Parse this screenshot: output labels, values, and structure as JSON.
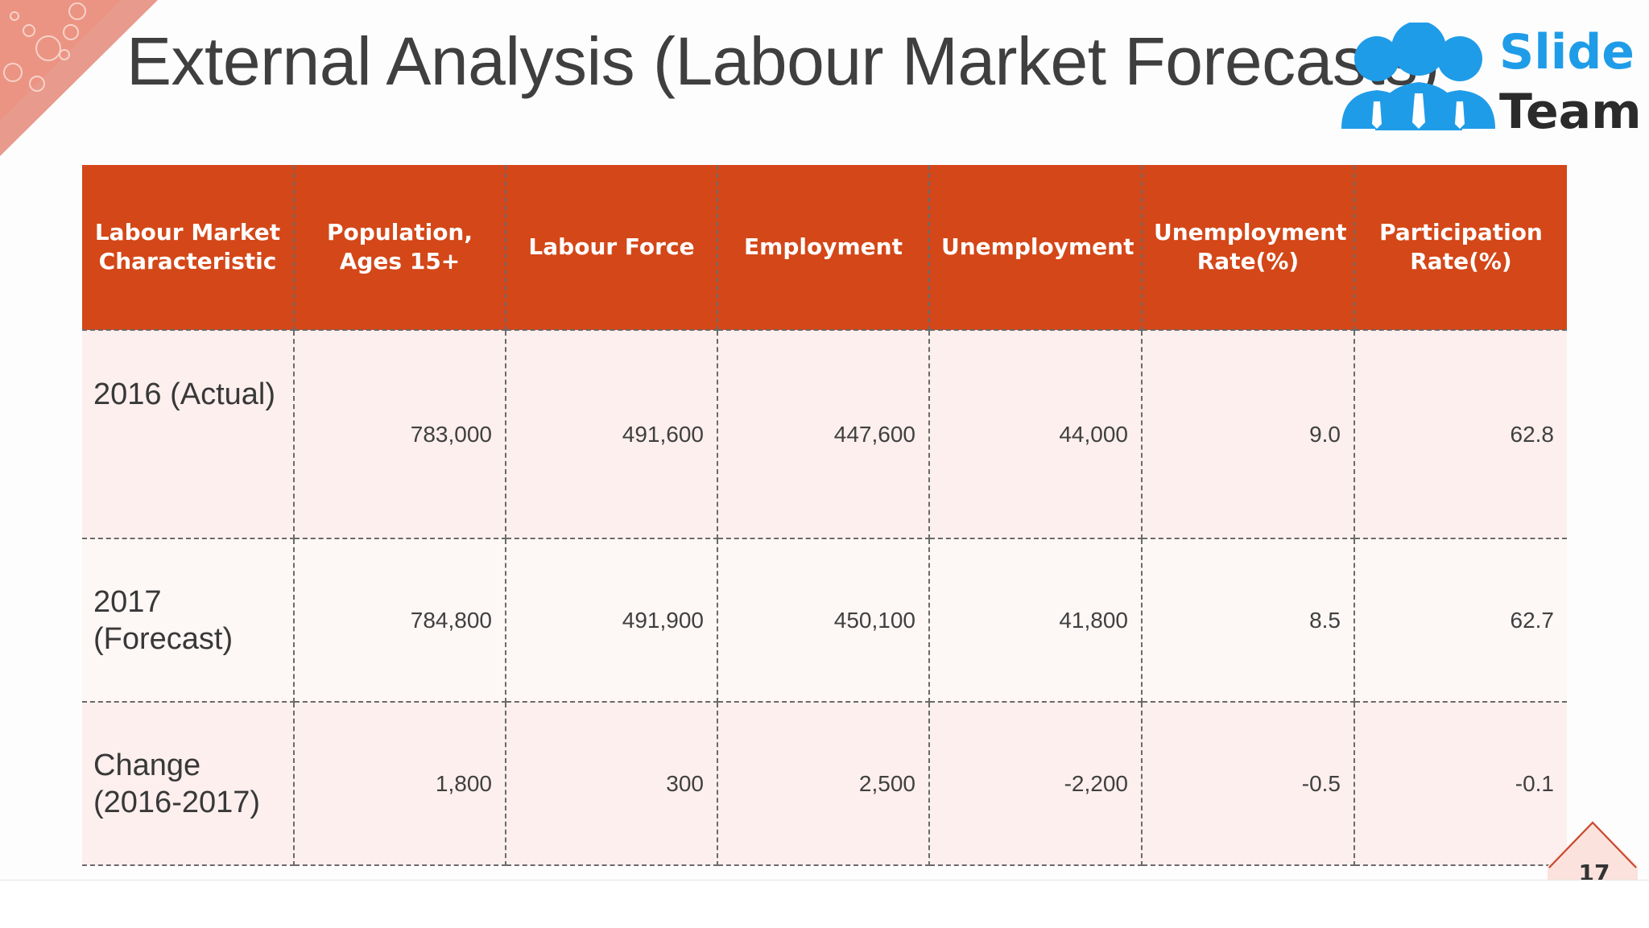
{
  "slide": {
    "title": "External Analysis (Labour Market Forecasts)",
    "page_number": "17"
  },
  "logo": {
    "line1": "Slide",
    "line2": "Team",
    "colors": {
      "blue": "#1f9ce8",
      "dark": "#2b2b2b"
    }
  },
  "table": {
    "header_color": "#d44718",
    "headers": [
      "Labour Market Characteristic",
      "Population, Ages 15+",
      "Labour Force",
      "Employment",
      "Unemployment",
      "Unemployment Rate(%)",
      "Participation Rate(%)"
    ],
    "rows": [
      {
        "label": "2016 (Actual)",
        "values": [
          "783,000",
          "491,600",
          "447,600",
          "44,000",
          "9.0",
          "62.8"
        ]
      },
      {
        "label": "2017 (Forecast)",
        "values": [
          "784,800",
          "491,900",
          "450,100",
          "41,800",
          "8.5",
          "62.7"
        ]
      },
      {
        "label": "Change (2016-2017)",
        "values": [
          "1,800",
          "300",
          "2,500",
          "-2,200",
          "-0.5",
          "-0.1"
        ]
      }
    ]
  }
}
